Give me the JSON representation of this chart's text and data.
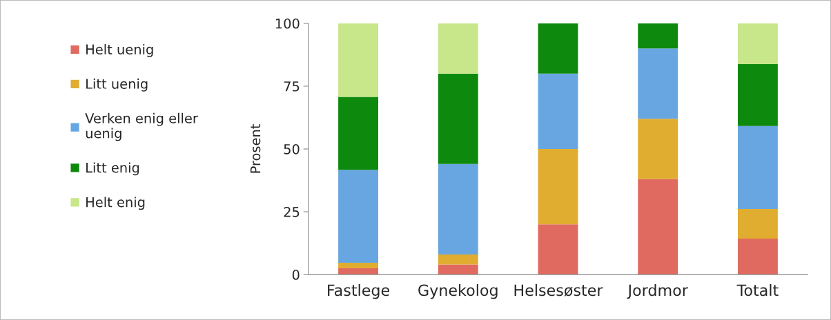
{
  "chart_data": {
    "type": "bar",
    "stacked": true,
    "ylabel": "Prosent",
    "categories": [
      "Fastlege",
      "Gynekolog",
      "Helsesøster",
      "Jordmor",
      "Totalt"
    ],
    "series": [
      {
        "name": "Helt uenig",
        "color": "#e06a5f",
        "values": [
          2.5,
          4,
          20,
          38,
          14.3
        ]
      },
      {
        "name": "Litt uenig",
        "color": "#e0ad30",
        "values": [
          2.2,
          4,
          30,
          24,
          11.8
        ]
      },
      {
        "name": "Verken enig eller\nuenig",
        "color": "#68a6e2",
        "values": [
          37,
          36,
          30,
          28,
          33
        ]
      },
      {
        "name": "Litt enig",
        "color": "#0d8a0d",
        "values": [
          29,
          36,
          20,
          10,
          24.7
        ]
      },
      {
        "name": "Helt enig",
        "color": "#c8e68a",
        "values": [
          29.3,
          20,
          0,
          0,
          16.2
        ]
      }
    ],
    "ylim": [
      0,
      100
    ],
    "yticks": [
      0,
      25,
      50,
      75,
      100
    ],
    "grid": false,
    "legend": "left"
  }
}
